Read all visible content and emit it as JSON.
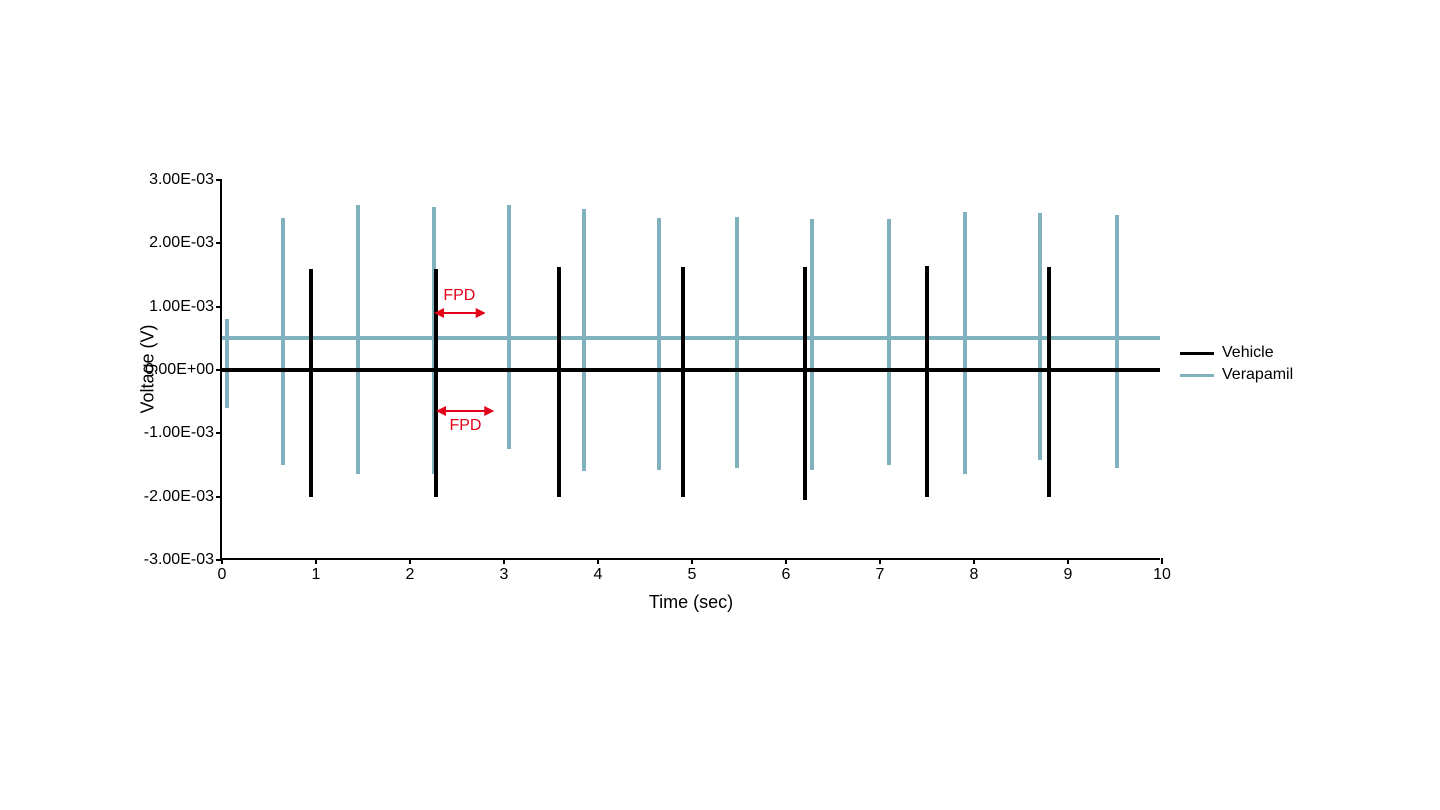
{
  "chart": {
    "type": "line",
    "xlabel": "Time (sec)",
    "ylabel": "Voltage (V)",
    "label_fontsize": 18,
    "tick_fontsize": 16,
    "xlim": [
      0,
      10
    ],
    "ylim": [
      -0.003,
      0.003
    ],
    "xtick_step": 1,
    "ytick_step": 0.001,
    "ytick_labels": [
      "-3.00E-03",
      "-2.00E-03",
      "-1.00E-03",
      "0.00E+00",
      "1.00E-03",
      "2.00E-03",
      "3.00E-03"
    ],
    "xtick_labels": [
      "0",
      "1",
      "2",
      "3",
      "4",
      "5",
      "6",
      "7",
      "8",
      "9",
      "10"
    ],
    "background_color": "#ffffff",
    "axis_color": "#000000",
    "series": [
      {
        "name": "Vehicle",
        "color": "#000000",
        "line_width": 4,
        "baseline": 0.0,
        "spikes": [
          {
            "x": 0.95,
            "ymin": -0.002,
            "ymax": 0.0016
          },
          {
            "x": 2.28,
            "ymin": -0.002,
            "ymax": 0.0016
          },
          {
            "x": 3.58,
            "ymin": -0.002,
            "ymax": 0.00162
          },
          {
            "x": 4.9,
            "ymin": -0.002,
            "ymax": 0.00162
          },
          {
            "x": 6.2,
            "ymin": -0.00205,
            "ymax": 0.00162
          },
          {
            "x": 7.5,
            "ymin": -0.002,
            "ymax": 0.00165
          },
          {
            "x": 8.8,
            "ymin": -0.002,
            "ymax": 0.00162
          }
        ]
      },
      {
        "name": "Verapamil",
        "color": "#7fb2bd",
        "line_width": 4,
        "baseline": 0.0005,
        "spikes": [
          {
            "x": 0.05,
            "ymin": -0.0006,
            "ymax": 0.0008
          },
          {
            "x": 0.65,
            "ymin": -0.0015,
            "ymax": 0.0024
          },
          {
            "x": 1.45,
            "ymin": -0.00165,
            "ymax": 0.0026
          },
          {
            "x": 2.25,
            "ymin": -0.00165,
            "ymax": 0.00258
          },
          {
            "x": 3.05,
            "ymin": -0.00125,
            "ymax": 0.0026
          },
          {
            "x": 3.85,
            "ymin": -0.0016,
            "ymax": 0.00255
          },
          {
            "x": 4.65,
            "ymin": -0.00158,
            "ymax": 0.0024
          },
          {
            "x": 5.48,
            "ymin": -0.00155,
            "ymax": 0.00242
          },
          {
            "x": 6.28,
            "ymin": -0.00158,
            "ymax": 0.00238
          },
          {
            "x": 7.1,
            "ymin": -0.0015,
            "ymax": 0.00238
          },
          {
            "x": 7.9,
            "ymin": -0.00165,
            "ymax": 0.0025
          },
          {
            "x": 8.7,
            "ymin": -0.00142,
            "ymax": 0.00248
          },
          {
            "x": 9.52,
            "ymin": -0.00155,
            "ymax": 0.00245
          }
        ]
      }
    ],
    "legend": {
      "items": [
        {
          "label": "Vehicle",
          "color": "#000000"
        },
        {
          "label": "Verapamil",
          "color": "#7fb2bd"
        }
      ]
    },
    "annotations": {
      "fpd_color": "#e3001b",
      "fpd_upper": {
        "label": "FPD",
        "x_start": 2.25,
        "x_end": 2.8,
        "y": 0.0009,
        "label_above": true
      },
      "fpd_lower": {
        "label": "FPD",
        "x_start": 2.28,
        "x_end": 2.9,
        "y": -0.00065,
        "label_above": false
      }
    }
  }
}
